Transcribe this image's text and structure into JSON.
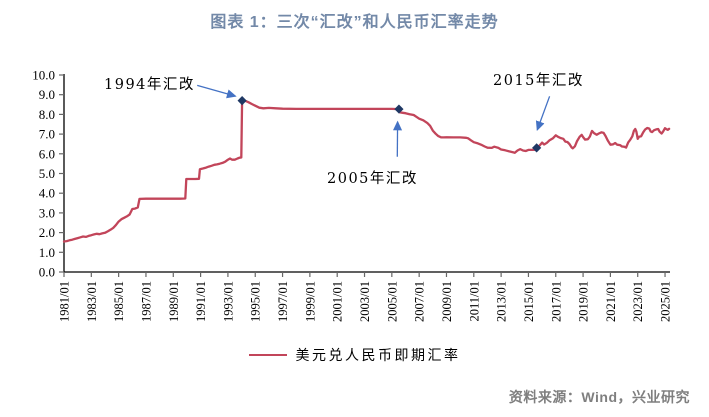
{
  "page": {
    "title": "图表 1：三次“汇改”和人民币汇率走势",
    "source": "资料来源：Wind，兴业研究"
  },
  "colors": {
    "title": "#7389A8",
    "line": "#C2455A",
    "marker": "#1F3864",
    "arrow": "#4472C4",
    "axis": "#000000",
    "tick": "#666666",
    "tick_label": "#000000",
    "annotation": "#000000",
    "source": "#7F7F7F"
  },
  "legend": {
    "label": "美元兑人民币即期汇率"
  },
  "annotations": [
    {
      "id": "reform-1994",
      "label": "1994年汇改",
      "arrow_from": [
        1990.75,
        9.47
      ],
      "arrow_to": [
        1993.55,
        8.93
      ]
    },
    {
      "id": "reform-2005",
      "label": "2005年汇改",
      "arrow_from": [
        2005.4,
        5.85
      ],
      "arrow_to": [
        2005.42,
        7.62
      ]
    },
    {
      "id": "reform-2015",
      "label": "2015年汇改",
      "arrow_from": [
        2016.55,
        8.92
      ],
      "arrow_to": [
        2015.65,
        7.22
      ]
    }
  ],
  "chart_data": {
    "type": "line",
    "title": "图表 1：三次“汇改”和人民币汇率走势",
    "xlabel": "",
    "ylabel": "",
    "xlim": [
      1981.0,
      2025.4
    ],
    "ylim": [
      0,
      10
    ],
    "grid": false,
    "legend_position": "bottom",
    "x_ticks": [
      "1981/01",
      "1983/01",
      "1985/01",
      "1987/01",
      "1989/01",
      "1991/01",
      "1993/01",
      "1995/01",
      "1997/01",
      "1999/01",
      "2001/01",
      "2003/01",
      "2005/01",
      "2007/01",
      "2009/01",
      "2011/01",
      "2013/01",
      "2015/01",
      "2017/01",
      "2019/01",
      "2021/01",
      "2023/01",
      "2025/01"
    ],
    "y_ticks": [
      "0.0",
      "1.0",
      "2.0",
      "3.0",
      "4.0",
      "5.0",
      "6.0",
      "7.0",
      "8.0",
      "9.0",
      "10.0"
    ],
    "markers": [
      {
        "label": "1994年汇改",
        "x": 1994.04,
        "y": 8.7
      },
      {
        "label": "2005年汇改",
        "x": 2005.52,
        "y": 8.27
      },
      {
        "label": "2015年汇改",
        "x": 2015.6,
        "y": 6.3
      }
    ],
    "series": [
      {
        "name": "美元兑人民币即期汇率",
        "color": "#C2455A",
        "points": [
          [
            1981.0,
            1.55
          ],
          [
            1981.2,
            1.57
          ],
          [
            1981.4,
            1.61
          ],
          [
            1981.6,
            1.64
          ],
          [
            1981.8,
            1.68
          ],
          [
            1982.0,
            1.72
          ],
          [
            1982.2,
            1.76
          ],
          [
            1982.4,
            1.8
          ],
          [
            1982.6,
            1.78
          ],
          [
            1982.8,
            1.83
          ],
          [
            1983.0,
            1.87
          ],
          [
            1983.2,
            1.91
          ],
          [
            1983.4,
            1.94
          ],
          [
            1983.6,
            1.92
          ],
          [
            1983.8,
            1.96
          ],
          [
            1984.0,
            1.99
          ],
          [
            1984.2,
            2.06
          ],
          [
            1984.4,
            2.14
          ],
          [
            1984.6,
            2.24
          ],
          [
            1984.8,
            2.38
          ],
          [
            1985.0,
            2.56
          ],
          [
            1985.2,
            2.68
          ],
          [
            1985.4,
            2.75
          ],
          [
            1985.6,
            2.82
          ],
          [
            1985.8,
            2.92
          ],
          [
            1986.0,
            3.2
          ],
          [
            1986.2,
            3.22
          ],
          [
            1986.4,
            3.28
          ],
          [
            1986.53,
            3.71
          ],
          [
            1987.0,
            3.72
          ],
          [
            1987.5,
            3.72
          ],
          [
            1988.0,
            3.72
          ],
          [
            1988.5,
            3.72
          ],
          [
            1989.0,
            3.72
          ],
          [
            1989.5,
            3.72
          ],
          [
            1989.88,
            3.73
          ],
          [
            1989.95,
            4.72
          ],
          [
            1990.3,
            4.72
          ],
          [
            1990.6,
            4.72
          ],
          [
            1990.88,
            4.73
          ],
          [
            1990.95,
            5.22
          ],
          [
            1991.2,
            5.26
          ],
          [
            1991.4,
            5.3
          ],
          [
            1991.6,
            5.35
          ],
          [
            1991.8,
            5.39
          ],
          [
            1992.0,
            5.44
          ],
          [
            1992.2,
            5.46
          ],
          [
            1992.4,
            5.5
          ],
          [
            1992.6,
            5.54
          ],
          [
            1992.8,
            5.6
          ],
          [
            1993.0,
            5.7
          ],
          [
            1993.15,
            5.76
          ],
          [
            1993.3,
            5.7
          ],
          [
            1993.5,
            5.7
          ],
          [
            1993.7,
            5.76
          ],
          [
            1993.85,
            5.8
          ],
          [
            1993.98,
            5.81
          ],
          [
            1994.04,
            8.7
          ],
          [
            1994.3,
            8.68
          ],
          [
            1994.5,
            8.62
          ],
          [
            1994.75,
            8.53
          ],
          [
            1995.0,
            8.44
          ],
          [
            1995.3,
            8.34
          ],
          [
            1995.6,
            8.31
          ],
          [
            1996.0,
            8.33
          ],
          [
            1996.5,
            8.31
          ],
          [
            1997.0,
            8.29
          ],
          [
            1998.0,
            8.28
          ],
          [
            1999.0,
            8.28
          ],
          [
            2000.0,
            8.28
          ],
          [
            2001.0,
            8.28
          ],
          [
            2002.0,
            8.28
          ],
          [
            2003.0,
            8.28
          ],
          [
            2004.0,
            8.28
          ],
          [
            2005.0,
            8.28
          ],
          [
            2005.5,
            8.27
          ],
          [
            2005.6,
            8.1
          ],
          [
            2005.8,
            8.08
          ],
          [
            2006.0,
            8.06
          ],
          [
            2006.3,
            8.01
          ],
          [
            2006.6,
            7.97
          ],
          [
            2006.8,
            7.88
          ],
          [
            2007.0,
            7.78
          ],
          [
            2007.3,
            7.7
          ],
          [
            2007.6,
            7.56
          ],
          [
            2007.8,
            7.42
          ],
          [
            2008.0,
            7.18
          ],
          [
            2008.2,
            7.02
          ],
          [
            2008.4,
            6.9
          ],
          [
            2008.6,
            6.84
          ],
          [
            2008.8,
            6.83
          ],
          [
            2009.0,
            6.84
          ],
          [
            2009.5,
            6.83
          ],
          [
            2010.0,
            6.83
          ],
          [
            2010.45,
            6.81
          ],
          [
            2010.6,
            6.78
          ],
          [
            2010.8,
            6.68
          ],
          [
            2011.0,
            6.59
          ],
          [
            2011.3,
            6.53
          ],
          [
            2011.6,
            6.44
          ],
          [
            2011.8,
            6.37
          ],
          [
            2012.0,
            6.31
          ],
          [
            2012.3,
            6.3
          ],
          [
            2012.5,
            6.36
          ],
          [
            2012.8,
            6.3
          ],
          [
            2013.0,
            6.22
          ],
          [
            2013.3,
            6.18
          ],
          [
            2013.6,
            6.12
          ],
          [
            2013.9,
            6.07
          ],
          [
            2014.0,
            6.05
          ],
          [
            2014.2,
            6.17
          ],
          [
            2014.4,
            6.24
          ],
          [
            2014.6,
            6.17
          ],
          [
            2014.8,
            6.14
          ],
          [
            2015.0,
            6.2
          ],
          [
            2015.3,
            6.2
          ],
          [
            2015.55,
            6.21
          ],
          [
            2015.62,
            6.33
          ],
          [
            2015.8,
            6.41
          ],
          [
            2016.0,
            6.57
          ],
          [
            2016.15,
            6.47
          ],
          [
            2016.35,
            6.56
          ],
          [
            2016.55,
            6.69
          ],
          [
            2016.8,
            6.79
          ],
          [
            2017.0,
            6.94
          ],
          [
            2017.15,
            6.87
          ],
          [
            2017.35,
            6.8
          ],
          [
            2017.55,
            6.76
          ],
          [
            2017.7,
            6.62
          ],
          [
            2017.85,
            6.6
          ],
          [
            2018.0,
            6.5
          ],
          [
            2018.15,
            6.33
          ],
          [
            2018.25,
            6.28
          ],
          [
            2018.4,
            6.38
          ],
          [
            2018.55,
            6.63
          ],
          [
            2018.75,
            6.87
          ],
          [
            2018.9,
            6.96
          ],
          [
            2019.0,
            6.85
          ],
          [
            2019.15,
            6.72
          ],
          [
            2019.35,
            6.74
          ],
          [
            2019.5,
            6.88
          ],
          [
            2019.65,
            7.16
          ],
          [
            2019.8,
            7.05
          ],
          [
            2020.0,
            6.97
          ],
          [
            2020.15,
            7.03
          ],
          [
            2020.35,
            7.09
          ],
          [
            2020.5,
            7.06
          ],
          [
            2020.65,
            6.9
          ],
          [
            2020.8,
            6.68
          ],
          [
            2021.0,
            6.46
          ],
          [
            2021.2,
            6.48
          ],
          [
            2021.35,
            6.55
          ],
          [
            2021.5,
            6.46
          ],
          [
            2021.7,
            6.44
          ],
          [
            2021.85,
            6.37
          ],
          [
            2022.0,
            6.36
          ],
          [
            2022.15,
            6.32
          ],
          [
            2022.3,
            6.58
          ],
          [
            2022.45,
            6.71
          ],
          [
            2022.6,
            6.89
          ],
          [
            2022.72,
            7.17
          ],
          [
            2022.82,
            7.26
          ],
          [
            2022.9,
            7.12
          ],
          [
            2023.0,
            6.76
          ],
          [
            2023.1,
            6.87
          ],
          [
            2023.25,
            6.89
          ],
          [
            2023.4,
            7.09
          ],
          [
            2023.55,
            7.24
          ],
          [
            2023.7,
            7.31
          ],
          [
            2023.85,
            7.28
          ],
          [
            2023.95,
            7.13
          ],
          [
            2024.05,
            7.1
          ],
          [
            2024.2,
            7.2
          ],
          [
            2024.35,
            7.24
          ],
          [
            2024.5,
            7.26
          ],
          [
            2024.6,
            7.12
          ],
          [
            2024.75,
            7.03
          ],
          [
            2024.85,
            7.12
          ],
          [
            2025.0,
            7.3
          ],
          [
            2025.1,
            7.25
          ],
          [
            2025.2,
            7.22
          ],
          [
            2025.3,
            7.27
          ]
        ]
      }
    ]
  }
}
